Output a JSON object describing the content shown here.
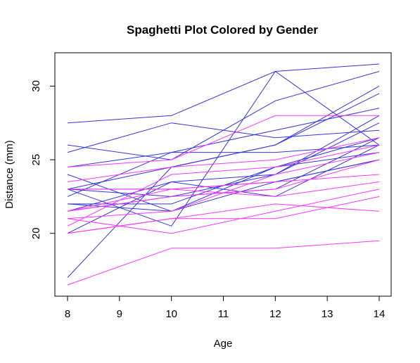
{
  "chart_data": {
    "type": "line",
    "title": "Spaghetti Plot Colored by Gender",
    "xlabel": "Age",
    "ylabel": "Distance (mm)",
    "x": [
      8,
      10,
      12,
      14
    ],
    "xlim": [
      8,
      14
    ],
    "ylim": [
      16.5,
      31.5
    ],
    "x_ticks": [
      8,
      9,
      10,
      11,
      12,
      13,
      14
    ],
    "y_ticks": [
      20,
      25,
      30
    ],
    "grid": false,
    "colors": {
      "male": "#3333dd",
      "female": "#ff33ff"
    },
    "series": [
      {
        "group": "male",
        "values": [
          26,
          25,
          29,
          31
        ]
      },
      {
        "group": "male",
        "values": [
          21.5,
          22.5,
          23,
          26.5
        ]
      },
      {
        "group": "male",
        "values": [
          23,
          22.5,
          24,
          27.5
        ]
      },
      {
        "group": "male",
        "values": [
          25.5,
          27.5,
          26.5,
          27
        ]
      },
      {
        "group": "male",
        "values": [
          20,
          23.5,
          22.5,
          26
        ]
      },
      {
        "group": "male",
        "values": [
          24.5,
          25.5,
          27,
          28.5
        ]
      },
      {
        "group": "male",
        "values": [
          22,
          22,
          24.5,
          26.5
        ]
      },
      {
        "group": "male",
        "values": [
          24,
          21.5,
          24.5,
          25.5
        ]
      },
      {
        "group": "male",
        "values": [
          23,
          20.5,
          31,
          26
        ]
      },
      {
        "group": "male",
        "values": [
          27.5,
          28,
          31,
          31.5
        ]
      },
      {
        "group": "male",
        "values": [
          23,
          23,
          23.5,
          25
        ]
      },
      {
        "group": "male",
        "values": [
          21.5,
          23.5,
          24,
          28
        ]
      },
      {
        "group": "male",
        "values": [
          17,
          24.5,
          26,
          29.5
        ]
      },
      {
        "group": "male",
        "values": [
          22.5,
          25.5,
          25.5,
          26
        ]
      },
      {
        "group": "male",
        "values": [
          23,
          24.5,
          26,
          30
        ]
      },
      {
        "group": "male",
        "values": [
          22,
          21.5,
          23.5,
          25
        ]
      },
      {
        "group": "female",
        "values": [
          21,
          20,
          21.5,
          23
        ]
      },
      {
        "group": "female",
        "values": [
          21,
          21.5,
          24,
          25.5
        ]
      },
      {
        "group": "female",
        "values": [
          20.5,
          24,
          24.5,
          26
        ]
      },
      {
        "group": "female",
        "values": [
          23.5,
          24.5,
          25,
          26.5
        ]
      },
      {
        "group": "female",
        "values": [
          21.5,
          23,
          22.5,
          23.5
        ]
      },
      {
        "group": "female",
        "values": [
          20,
          21,
          21,
          22.5
        ]
      },
      {
        "group": "female",
        "values": [
          21.5,
          22.5,
          23,
          25
        ]
      },
      {
        "group": "female",
        "values": [
          23,
          23,
          23.5,
          24
        ]
      },
      {
        "group": "female",
        "values": [
          20,
          21,
          22,
          21.5
        ]
      },
      {
        "group": "female",
        "values": [
          16.5,
          19,
          19,
          19.5
        ]
      },
      {
        "group": "female",
        "values": [
          24.5,
          25,
          28,
          28
        ]
      }
    ]
  }
}
